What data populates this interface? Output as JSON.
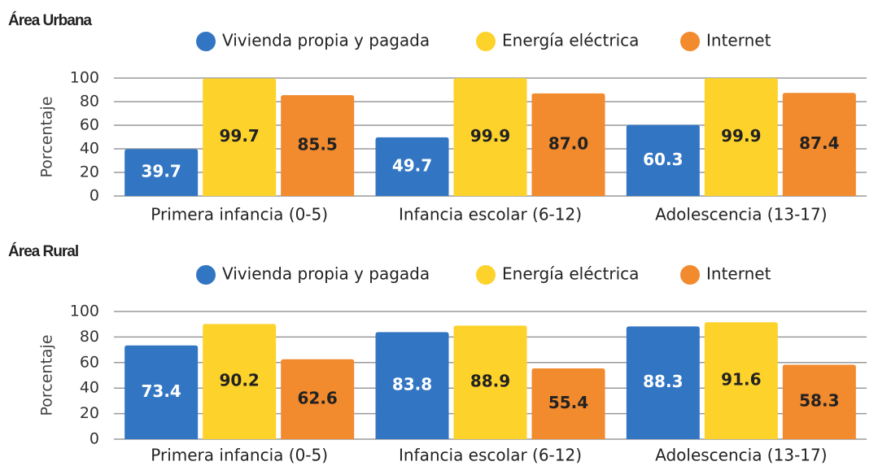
{
  "chart_data": [
    {
      "type": "bar",
      "title": "Área Urbana",
      "ylabel": "Porcentaje",
      "categories": [
        "Primera infancia (0-5)",
        "Infancia escolar (6-12)",
        "Adolescencia (13-17)"
      ],
      "series": [
        {
          "name": "Vivienda propia y pagada",
          "color": "#3276c3",
          "values": [
            39.7,
            49.7,
            60.3
          ],
          "value_labels": [
            "39.7",
            "49.7",
            "60.3"
          ]
        },
        {
          "name": "Energía eléctrica",
          "color": "#fdd22b",
          "values": [
            99.7,
            99.9,
            99.9
          ],
          "value_labels": [
            "99.7",
            "99.9",
            "99.9"
          ]
        },
        {
          "name": "Internet",
          "color": "#f28a2e",
          "values": [
            85.5,
            87.0,
            87.4
          ],
          "value_labels": [
            "85.5",
            "87.0",
            "87.4"
          ]
        }
      ],
      "ylim": [
        0,
        100
      ],
      "yticks": [
        0,
        20,
        40,
        60,
        80,
        100
      ],
      "grid": true
    },
    {
      "type": "bar",
      "title": "Área Rural",
      "ylabel": "Porcentaje",
      "categories": [
        "Primera infancia (0-5)",
        "Infancia escolar (6-12)",
        "Adolescencia (13-17)"
      ],
      "series": [
        {
          "name": "Vivienda propia y pagada",
          "color": "#3276c3",
          "values": [
            73.4,
            83.8,
            88.3
          ],
          "value_labels": [
            "73.4",
            "83.8",
            "88.3"
          ]
        },
        {
          "name": "Energía eléctrica",
          "color": "#fdd22b",
          "values": [
            90.2,
            88.9,
            91.6
          ],
          "value_labels": [
            "90.2",
            "88.9",
            "91.6"
          ]
        },
        {
          "name": "Internet",
          "color": "#f28a2e",
          "values": [
            62.6,
            55.4,
            58.3
          ],
          "value_labels": [
            "62.6",
            "55.4",
            "58.3"
          ]
        }
      ],
      "ylim": [
        0,
        100
      ],
      "yticks": [
        0,
        20,
        40,
        60,
        80,
        100
      ],
      "grid": true
    }
  ]
}
